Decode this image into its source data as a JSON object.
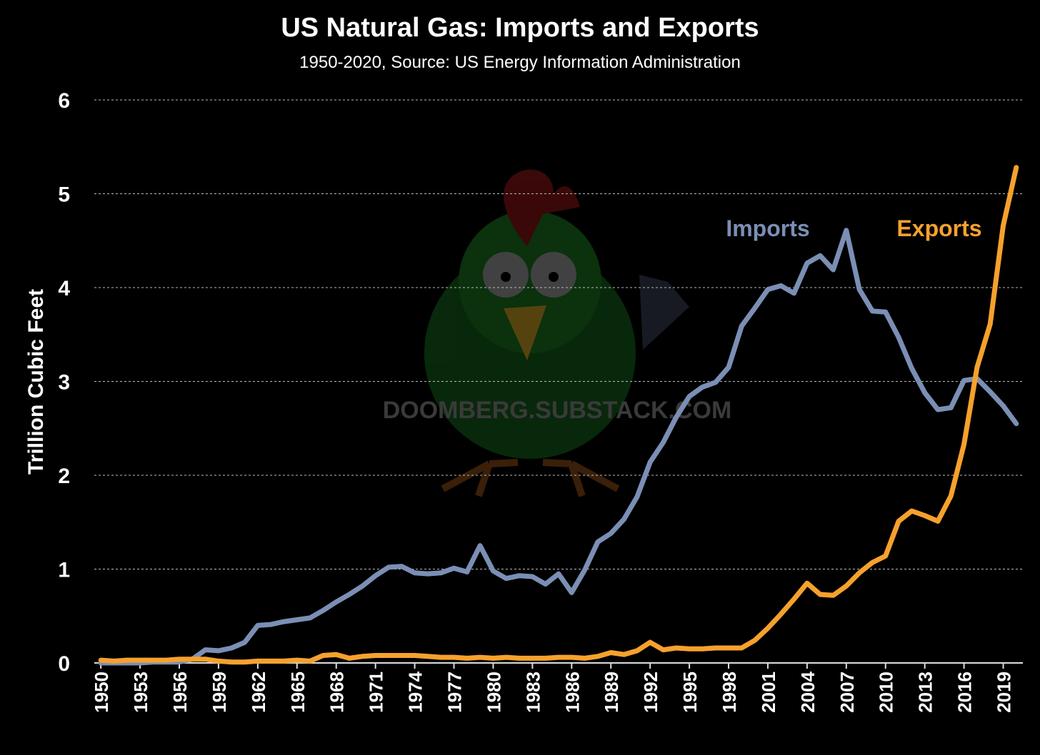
{
  "chart_data": {
    "type": "line",
    "title": "US Natural Gas: Imports and Exports",
    "subtitle": "1950-2020, Source: US Energy Information Administration",
    "ylabel": "Trillion Cubic Feet",
    "xlabel": "",
    "ylim": [
      0,
      6
    ],
    "yticks": [
      0,
      1,
      2,
      3,
      4,
      5,
      6
    ],
    "xlim": [
      1950,
      2020
    ],
    "xticks": [
      1950,
      1953,
      1956,
      1959,
      1962,
      1965,
      1968,
      1971,
      1974,
      1977,
      1980,
      1983,
      1986,
      1989,
      1992,
      1995,
      1998,
      2001,
      2004,
      2007,
      2010,
      2013,
      2016,
      2019
    ],
    "grid": "horizontal dashed",
    "legend": "inline labels, top-right",
    "x": [
      1950,
      1951,
      1952,
      1953,
      1954,
      1955,
      1956,
      1957,
      1958,
      1959,
      1960,
      1961,
      1962,
      1963,
      1964,
      1965,
      1966,
      1967,
      1968,
      1969,
      1970,
      1971,
      1972,
      1973,
      1974,
      1975,
      1976,
      1977,
      1978,
      1979,
      1980,
      1981,
      1982,
      1983,
      1984,
      1985,
      1986,
      1987,
      1988,
      1989,
      1990,
      1991,
      1992,
      1993,
      1994,
      1995,
      1996,
      1997,
      1998,
      1999,
      2000,
      2001,
      2002,
      2003,
      2004,
      2005,
      2006,
      2007,
      2008,
      2009,
      2010,
      2011,
      2012,
      2013,
      2014,
      2015,
      2016,
      2017,
      2018,
      2019,
      2020
    ],
    "series": [
      {
        "name": "Imports",
        "color": "#7b8fb5",
        "values": [
          0.0,
          0.0,
          0.0,
          0.0,
          0.01,
          0.01,
          0.01,
          0.04,
          0.14,
          0.13,
          0.16,
          0.22,
          0.4,
          0.41,
          0.44,
          0.46,
          0.48,
          0.56,
          0.65,
          0.73,
          0.82,
          0.93,
          1.02,
          1.03,
          0.96,
          0.95,
          0.96,
          1.01,
          0.97,
          1.25,
          0.98,
          0.9,
          0.93,
          0.92,
          0.84,
          0.95,
          0.75,
          0.99,
          1.29,
          1.38,
          1.53,
          1.77,
          2.14,
          2.35,
          2.62,
          2.84,
          2.94,
          2.99,
          3.15,
          3.59,
          3.78,
          3.98,
          4.02,
          3.94,
          4.26,
          4.34,
          4.19,
          4.61,
          3.98,
          3.75,
          3.74,
          3.47,
          3.14,
          2.88,
          2.7,
          2.72,
          3.01,
          3.03,
          2.89,
          2.74,
          2.55
        ]
      },
      {
        "name": "Exports",
        "color": "#f6a12d",
        "values": [
          0.03,
          0.02,
          0.03,
          0.03,
          0.03,
          0.03,
          0.04,
          0.04,
          0.04,
          0.02,
          0.01,
          0.01,
          0.02,
          0.02,
          0.02,
          0.03,
          0.02,
          0.08,
          0.09,
          0.05,
          0.07,
          0.08,
          0.08,
          0.08,
          0.08,
          0.07,
          0.06,
          0.06,
          0.05,
          0.06,
          0.05,
          0.06,
          0.05,
          0.05,
          0.05,
          0.06,
          0.06,
          0.05,
          0.07,
          0.11,
          0.09,
          0.13,
          0.22,
          0.14,
          0.16,
          0.15,
          0.15,
          0.16,
          0.16,
          0.16,
          0.24,
          0.37,
          0.52,
          0.68,
          0.85,
          0.73,
          0.72,
          0.82,
          0.96,
          1.07,
          1.14,
          1.51,
          1.62,
          1.57,
          1.51,
          1.78,
          2.33,
          3.15,
          3.61,
          4.66,
          5.28
        ]
      }
    ],
    "annotations": {
      "watermark": "DOOMBERG.SUBSTACK.COM"
    }
  }
}
